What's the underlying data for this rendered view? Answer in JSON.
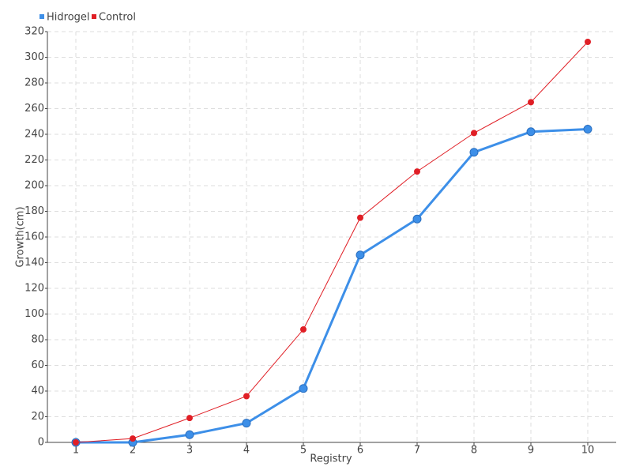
{
  "chart_data": {
    "type": "line",
    "x_label": "Registry",
    "y_label": "Growth(cm)",
    "categories": [
      "1",
      "2",
      "3",
      "4",
      "5",
      "6",
      "7",
      "8",
      "9",
      "10"
    ],
    "series": [
      {
        "name": "Hidrogel",
        "color": "#3d8fe8",
        "values": [
          0,
          0,
          6,
          15,
          42,
          146,
          174,
          226,
          242,
          244
        ]
      },
      {
        "name": "Control",
        "color": "#e01e25",
        "values": [
          0,
          3,
          19,
          36,
          88,
          175,
          211,
          241,
          265,
          312
        ]
      }
    ],
    "ylim": [
      0,
      320
    ],
    "yticks": [
      0,
      20,
      40,
      60,
      80,
      100,
      120,
      140,
      160,
      180,
      200,
      220,
      240,
      260,
      280,
      300,
      320
    ],
    "grid": true,
    "legend": "top-left"
  }
}
